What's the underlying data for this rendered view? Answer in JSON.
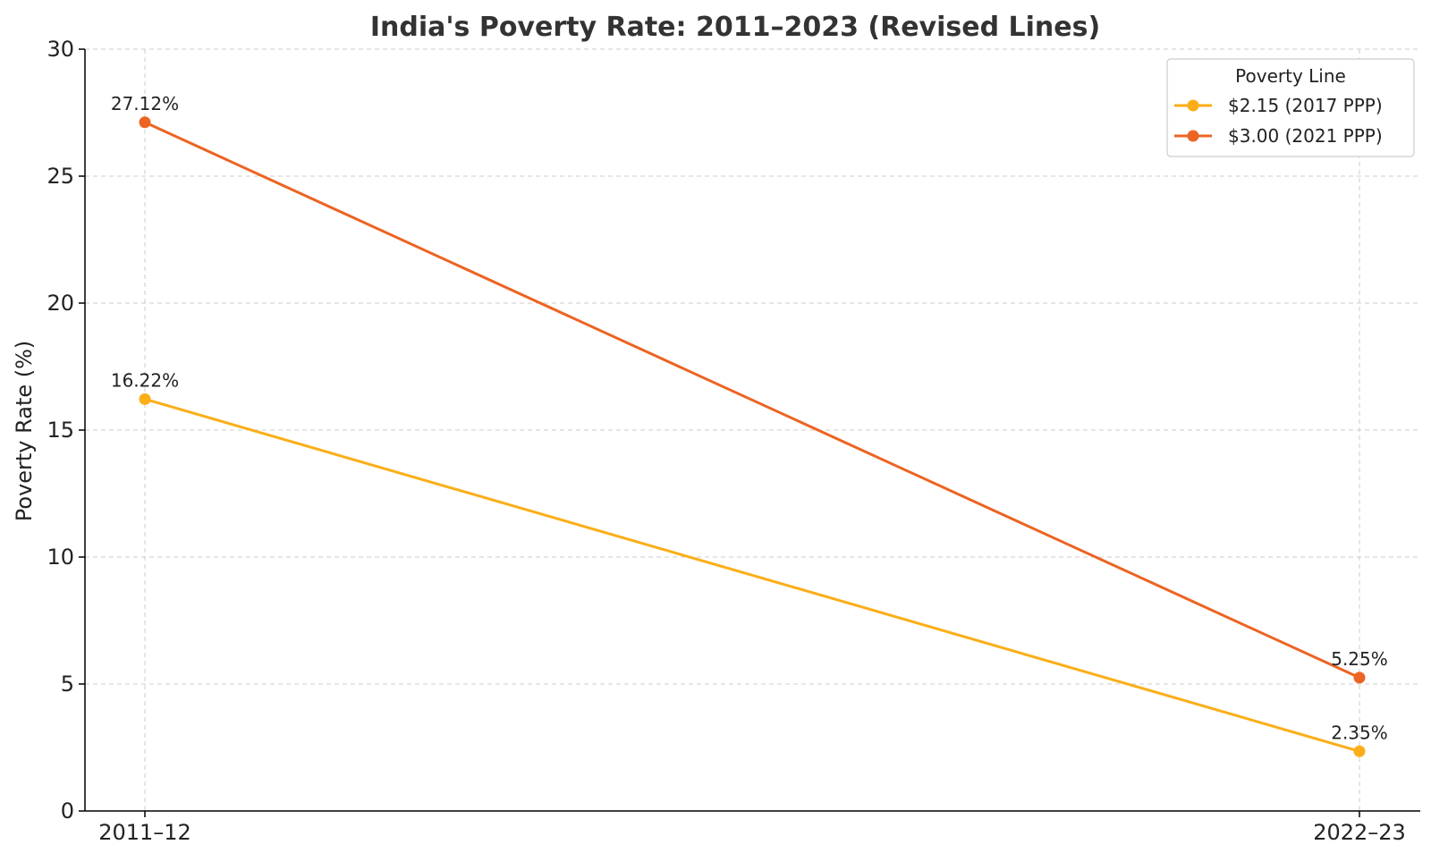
{
  "chart_data": {
    "type": "line",
    "title": "India's Poverty Rate: 2011–2023 (Revised Lines)",
    "xlabel": "",
    "ylabel": "Poverty Rate (%)",
    "categories": [
      "2011–12",
      "2022–23"
    ],
    "ylim": [
      0,
      30
    ],
    "yticks": [
      0,
      5,
      10,
      15,
      20,
      25,
      30
    ],
    "grid": true,
    "legend": {
      "title": "Poverty Line",
      "placement": "top-right"
    },
    "series": [
      {
        "name": "$2.15 (2017 PPP)",
        "values": [
          16.22,
          2.35
        ],
        "labels": [
          "16.22%",
          "2.35%"
        ],
        "color": "#fbae17"
      },
      {
        "name": "$3.00 (2021 PPP)",
        "values": [
          27.12,
          5.25
        ],
        "labels": [
          "27.12%",
          "5.25%"
        ],
        "color": "#ec6423"
      }
    ]
  }
}
